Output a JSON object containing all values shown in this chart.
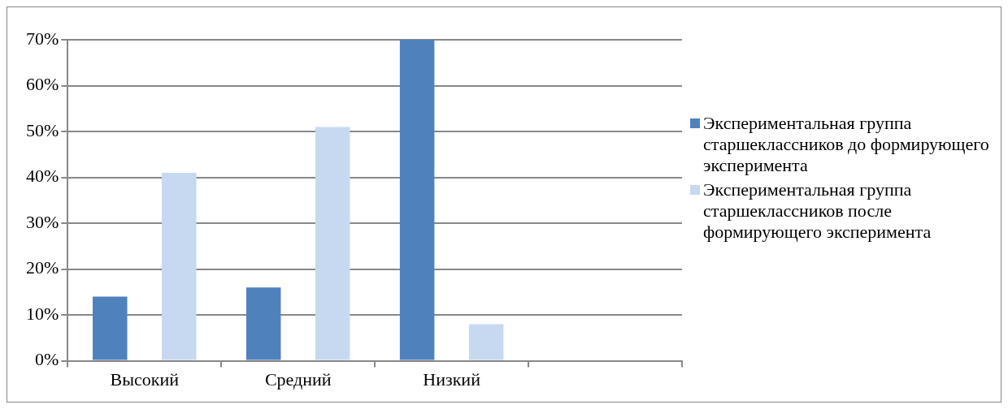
{
  "chart_data": {
    "type": "bar",
    "categories": [
      "Высокий",
      "Средний",
      "Низкий",
      null
    ],
    "series": [
      {
        "name": "Экспериментальная группа старшеклассников до формирующего эксперимента",
        "color": "#4f81bd",
        "values": [
          14,
          16,
          70,
          null
        ]
      },
      {
        "name": "Экспериментальная группа старшеклассников после формирующего эксперимента",
        "color": "#c6d9f1",
        "values": [
          41,
          51,
          8,
          null
        ]
      }
    ],
    "ylim": [
      0,
      70
    ],
    "yticks": [
      {
        "value": 0,
        "label": "0%"
      },
      {
        "value": 10,
        "label": "10%"
      },
      {
        "value": 20,
        "label": "20%"
      },
      {
        "value": 30,
        "label": "30%"
      },
      {
        "value": 40,
        "label": "40%"
      },
      {
        "value": 50,
        "label": "50%"
      },
      {
        "value": 60,
        "label": "60%"
      },
      {
        "value": 70,
        "label": "70%"
      }
    ],
    "grid": "y",
    "legend": "right"
  }
}
